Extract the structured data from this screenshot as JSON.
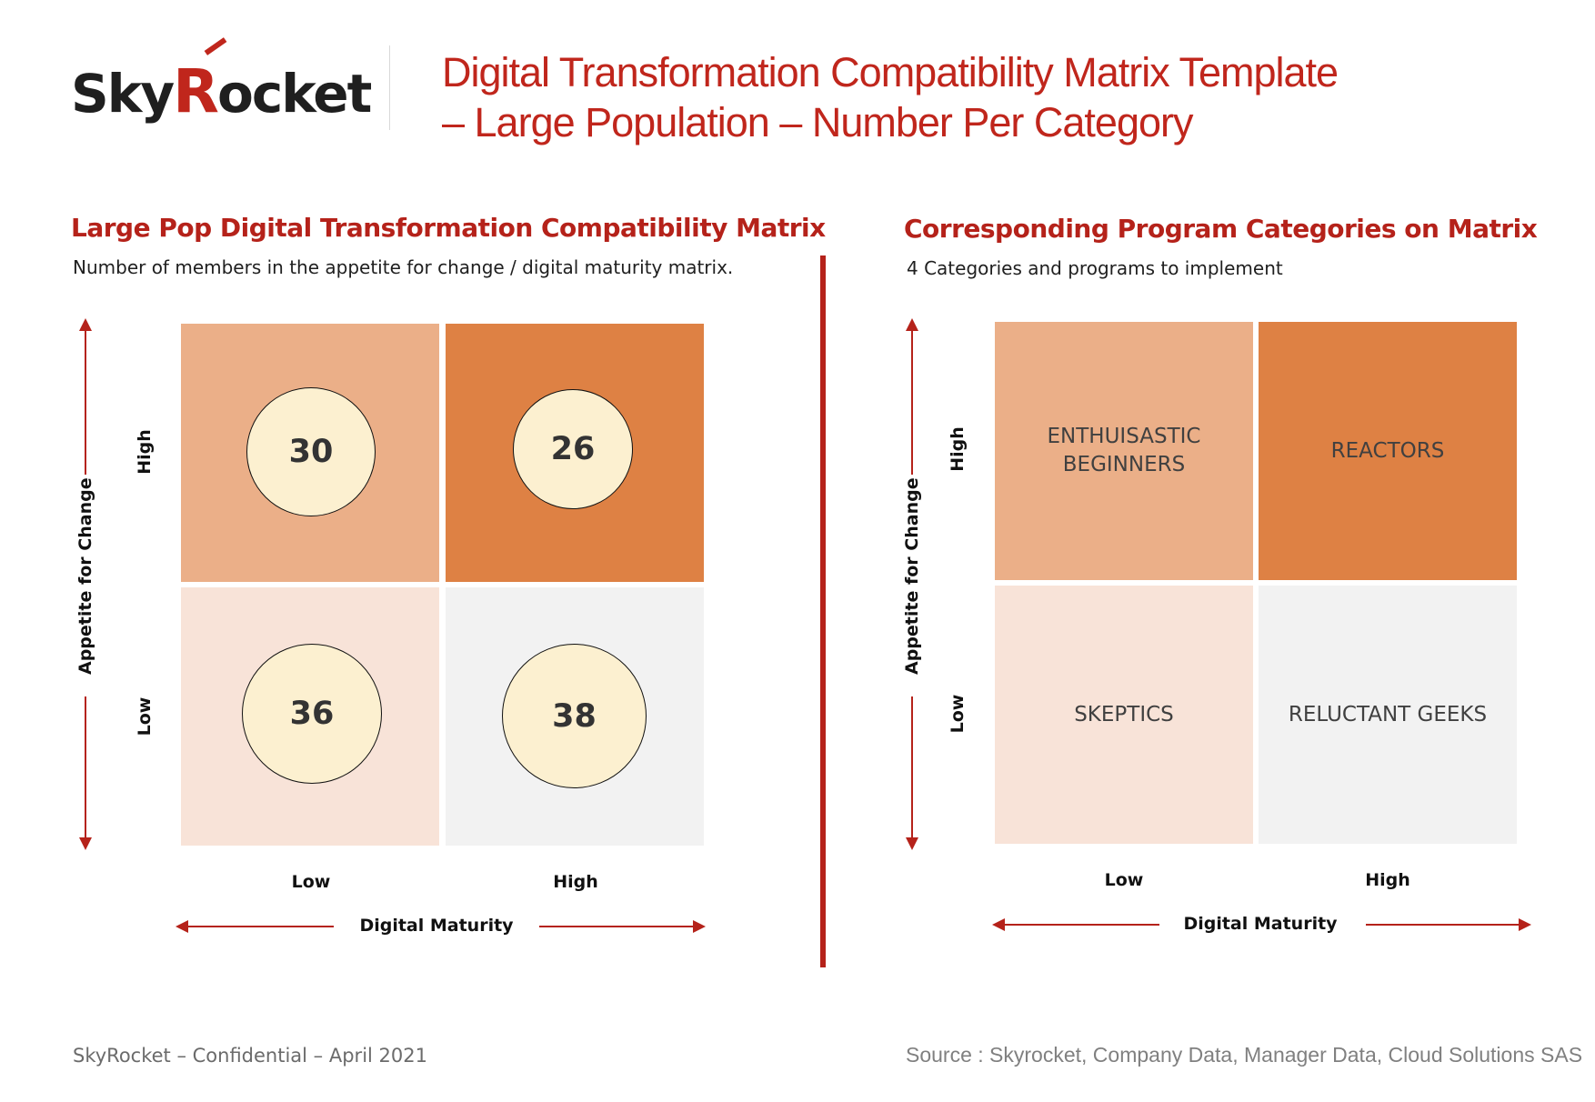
{
  "header": {
    "logo_text_1": "Sky",
    "logo_text_2": "R",
    "logo_text_3": "ocket",
    "title_line1": "Digital Transformation Compatibility Matrix Template",
    "title_line2": "– Large Population – Number Per Category"
  },
  "left": {
    "title": "Large Pop Digital Transformation Compatibility Matrix",
    "subtitle": "Number of members in the appetite for change / digital maturity matrix.",
    "y_axis_title": "Appetite for Change",
    "y_high": "High",
    "y_low": "Low",
    "x_axis_title": "Digital Maturity",
    "x_low": "Low",
    "x_high": "High",
    "counts": {
      "low_maturity_high_appetite": "30",
      "high_maturity_high_appetite": "26",
      "low_maturity_low_appetite": "36",
      "high_maturity_low_appetite": "38"
    }
  },
  "right": {
    "title": "Corresponding Program Categories on Matrix",
    "subtitle": "4 Categories and programs to implement",
    "y_axis_title": "Appetite for Change",
    "y_high": "High",
    "y_low": "Low",
    "x_axis_title": "Digital Maturity",
    "x_low": "Low",
    "x_high": "High",
    "categories": {
      "low_maturity_high_appetite": "ENTHUISASTIC\nBEGINNERS",
      "high_maturity_high_appetite": "REACTORS",
      "low_maturity_low_appetite": "SKEPTICS",
      "high_maturity_low_appetite": "RELUCTANT GEEKS"
    }
  },
  "colors": {
    "brand_red": "#b5221a",
    "cell_low_high": "#ebaf88",
    "cell_high_high": "#de8144",
    "cell_low_low": "#f8e3d8",
    "cell_high_low": "#f2f2f2",
    "bubble_fill": "#fcf0d0"
  },
  "chart_data": {
    "type": "table",
    "title": "Large Pop Digital Transformation Compatibility Matrix",
    "xlabel": "Digital Maturity",
    "ylabel": "Appetite for Change",
    "x_categories": [
      "Low",
      "High"
    ],
    "y_categories": [
      "High",
      "Low"
    ],
    "values": [
      [
        30,
        26
      ],
      [
        36,
        38
      ]
    ]
  },
  "footer": {
    "left": "SkyRocket – Confidential – April 2021",
    "right": "Source : Skyrocket, Company Data, Manager Data, Cloud Solutions SAS"
  }
}
